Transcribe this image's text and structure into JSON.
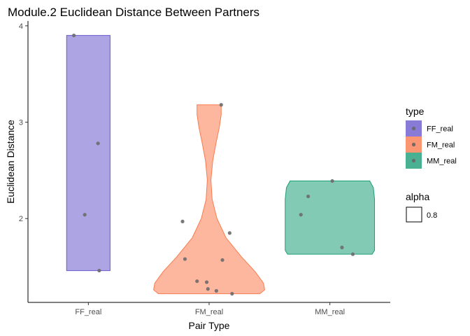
{
  "chart_data": {
    "type": "violin",
    "title": "Module.2 Euclidean Distance Between Partners",
    "xlabel": "Pair Type",
    "ylabel": "Euclidean Distance",
    "categories": [
      "FF_real",
      "FM_real",
      "MM_real"
    ],
    "ylim": [
      1.13,
      4.05
    ],
    "yticks": [
      2,
      3,
      4
    ],
    "grid": false,
    "alpha": 0.8,
    "series": [
      {
        "name": "FF_real",
        "color": "#6a5acd",
        "points": [
          3.9,
          2.78,
          2.04,
          1.46
        ],
        "point_offsets": [
          -0.12,
          0.08,
          -0.03,
          0.09
        ],
        "violin": [
          [
            1.46,
            0.18
          ],
          [
            1.8,
            0.18
          ],
          [
            2.3,
            0.18
          ],
          [
            2.8,
            0.18
          ],
          [
            3.3,
            0.18
          ],
          [
            3.89,
            0.18
          ],
          [
            3.9,
            0.18
          ]
        ]
      },
      {
        "name": "FM_real",
        "color": "#f97c4f",
        "points": [
          3.18,
          1.97,
          1.85,
          1.58,
          1.57,
          1.35,
          1.34,
          1.27,
          1.25,
          1.22
        ],
        "point_offsets": [
          0.1,
          -0.22,
          0.17,
          -0.2,
          0.11,
          -0.1,
          -0.02,
          -0.01,
          0.06,
          0.19
        ],
        "violin": [
          [
            1.22,
            0.42
          ],
          [
            1.26,
            0.46
          ],
          [
            1.33,
            0.45
          ],
          [
            1.45,
            0.38
          ],
          [
            1.6,
            0.27
          ],
          [
            1.8,
            0.14
          ],
          [
            2.0,
            0.065
          ],
          [
            2.2,
            0.025
          ],
          [
            2.4,
            0.015
          ],
          [
            2.6,
            0.03
          ],
          [
            2.8,
            0.06
          ],
          [
            2.95,
            0.085
          ],
          [
            3.08,
            0.1
          ],
          [
            3.18,
            0.1
          ]
        ]
      },
      {
        "name": "MM_real",
        "color": "#1b9e77",
        "points": [
          2.39,
          2.23,
          2.04,
          1.7,
          1.63
        ],
        "point_offsets": [
          0.02,
          -0.18,
          -0.24,
          0.1,
          0.19
        ],
        "violin": [
          [
            1.63,
            0.35
          ],
          [
            1.67,
            0.37
          ],
          [
            1.8,
            0.37
          ],
          [
            2.0,
            0.37
          ],
          [
            2.2,
            0.37
          ],
          [
            2.32,
            0.36
          ],
          [
            2.39,
            0.33
          ]
        ]
      }
    ],
    "legend": {
      "placement": "right",
      "type_title": "type",
      "type_entries": [
        "FF_real",
        "FM_real",
        "MM_real"
      ],
      "alpha_title": "alpha",
      "alpha_entry": "0.8"
    }
  }
}
